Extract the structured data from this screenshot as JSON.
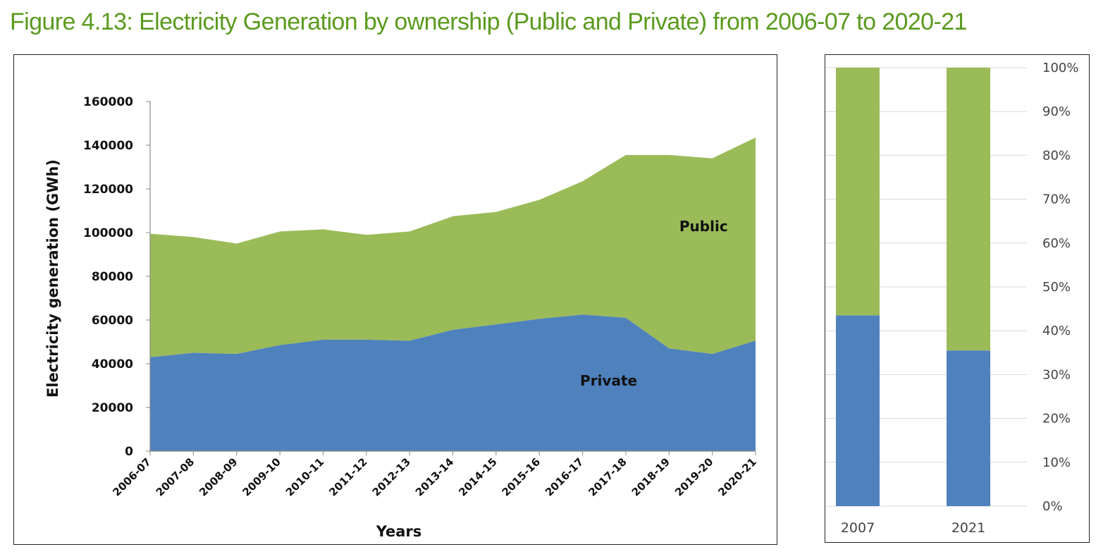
{
  "figure_title": "Figure 4.13: Electricity Generation by ownership (Public and Private) from 2006-07 to 2020-21",
  "colors": {
    "public": "#9bbb59",
    "private": "#4f81bd",
    "title": "#5a9a1e"
  },
  "chart_data": [
    {
      "type": "area",
      "stacked": true,
      "title": "",
      "xlabel": "Years",
      "ylabel": "Electricity generation (GWh)",
      "ylim": [
        0,
        160000
      ],
      "yticks": [
        "0",
        "20000",
        "40000",
        "60000",
        "80000",
        "100000",
        "120000",
        "140000",
        "160000"
      ],
      "categories": [
        "2006-07",
        "2007-08",
        "2008-09",
        "2009-10",
        "2010-11",
        "2011-12",
        "2012-13",
        "2013-14",
        "2014-15",
        "2015-16",
        "2016-17",
        "2017-18",
        "2018-19",
        "2019-20",
        "2020-21"
      ],
      "series": [
        {
          "name": "Private",
          "values": [
            43000,
            45000,
            44500,
            48500,
            51000,
            51000,
            50500,
            55500,
            58000,
            60500,
            62500,
            61000,
            47000,
            44500,
            50500
          ]
        },
        {
          "name": "Public",
          "values": [
            56500,
            53000,
            50500,
            52000,
            50500,
            48000,
            50000,
            52000,
            51500,
            54500,
            61000,
            74500,
            88500,
            89500,
            93000
          ]
        }
      ],
      "grid": false,
      "legend": "none"
    },
    {
      "type": "bar",
      "stacked": true,
      "percent": true,
      "categories": [
        "2007",
        "2021"
      ],
      "yticks": [
        "0%",
        "10%",
        "20%",
        "30%",
        "40%",
        "50%",
        "60%",
        "70%",
        "80%",
        "90%",
        "100%"
      ],
      "ylim": [
        0,
        100
      ],
      "y_axis_side": "right",
      "series": [
        {
          "name": "Private",
          "values": [
            43.5,
            35.5
          ]
        },
        {
          "name": "Public",
          "values": [
            56.5,
            64.5
          ]
        }
      ],
      "grid": true,
      "legend": "none"
    }
  ]
}
